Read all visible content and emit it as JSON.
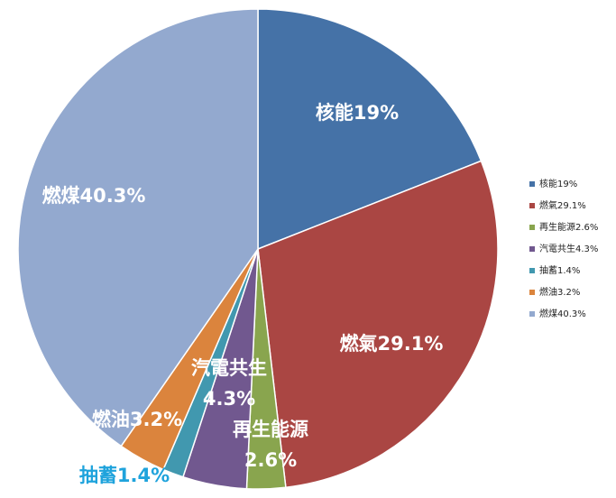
{
  "chart_data": {
    "type": "pie",
    "series": [
      {
        "name": "核能",
        "value": 19.0,
        "color": "#4572A7",
        "label_lines": [
          "核能19%"
        ],
        "label_color": "#ffffff"
      },
      {
        "name": "燃氣",
        "value": 29.1,
        "color": "#AA4643",
        "label_lines": [
          "燃氣29.1%"
        ],
        "label_color": "#ffffff"
      },
      {
        "name": "再生能源",
        "value": 2.6,
        "color": "#89A54E",
        "label_lines": [
          "再生能源",
          "2.6%"
        ],
        "label_color": "#ffffff"
      },
      {
        "name": "汽電共生",
        "value": 4.3,
        "color": "#71588F",
        "label_lines": [
          "汽電共生",
          "4.3%"
        ],
        "label_color": "#ffffff"
      },
      {
        "name": "抽蓄",
        "value": 1.4,
        "color": "#4198AF",
        "label_lines": [
          "抽蓄1.4%"
        ],
        "label_color": "#1FA3DC"
      },
      {
        "name": "燃油",
        "value": 3.2,
        "color": "#DB843D",
        "label_lines": [
          "燃油3.2%"
        ],
        "label_color": "#ffffff"
      },
      {
        "name": "燃煤",
        "value": 40.3,
        "color": "#93A9CF",
        "label_lines": [
          "燃煤40.3%"
        ],
        "label_color": "#ffffff"
      }
    ],
    "legend": {
      "position": "right",
      "entries": [
        "核能19%",
        "燃氣29.1%",
        "再生能源2.6%",
        "汽電共生4.3%",
        "抽蓄1.4%",
        "燃油3.2%",
        "燃煤40.3%"
      ]
    },
    "start_angle": "12 o'clock",
    "direction": "clockwise"
  }
}
